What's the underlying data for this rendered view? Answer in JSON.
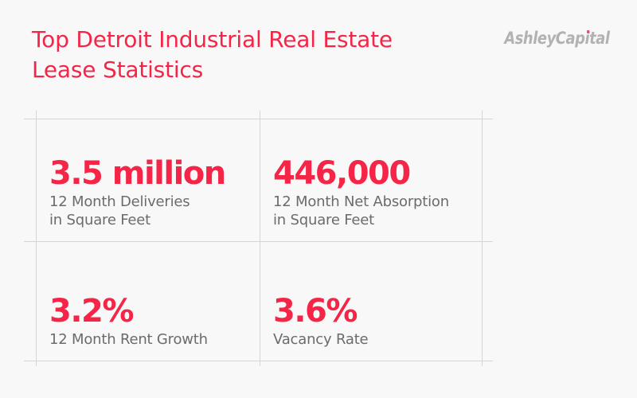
{
  "meta": {
    "background_color": "#f8f8f9",
    "accent_color": "#f42547",
    "label_color": "#6b6b6e",
    "logo_color": "#b2b2b5",
    "logo_dot_color": "#e8506e",
    "grid_line_color": "#d5d5d7"
  },
  "header": {
    "title_line1": "Top Detroit Industrial Real Estate",
    "title_line2": "Lease Statistics"
  },
  "logo": {
    "text": "AshleyCapital",
    "pre_i": "AshleyCap",
    "dotless_i": "ı",
    "post_i": "tal"
  },
  "stats": [
    {
      "value": "3.5 million",
      "label_line1": "12 Month Deliveries",
      "label_line2": "in Square Feet"
    },
    {
      "value": "446,000",
      "label_line1": "12 Month Net Absorption",
      "label_line2": "in Square Feet"
    },
    {
      "value": "3.2%",
      "label_line1": "12 Month Rent Growth",
      "label_line2": ""
    },
    {
      "value": "3.6%",
      "label_line1": "Vacancy Rate",
      "label_line2": ""
    }
  ],
  "chart_data": {
    "type": "table",
    "title": "Top Detroit Industrial Real Estate Lease Statistics",
    "source_brand": "AshleyCapital",
    "metrics": [
      {
        "label": "12 Month Deliveries in Square Feet",
        "value": "3.5 million",
        "numeric_value": 3500000
      },
      {
        "label": "12 Month Net Absorption in Square Feet",
        "value": "446,000",
        "numeric_value": 446000
      },
      {
        "label": "12 Month Rent Growth",
        "value": "3.2%",
        "numeric_value": 3.2
      },
      {
        "label": "Vacancy Rate",
        "value": "3.6%",
        "numeric_value": 3.6
      }
    ]
  }
}
